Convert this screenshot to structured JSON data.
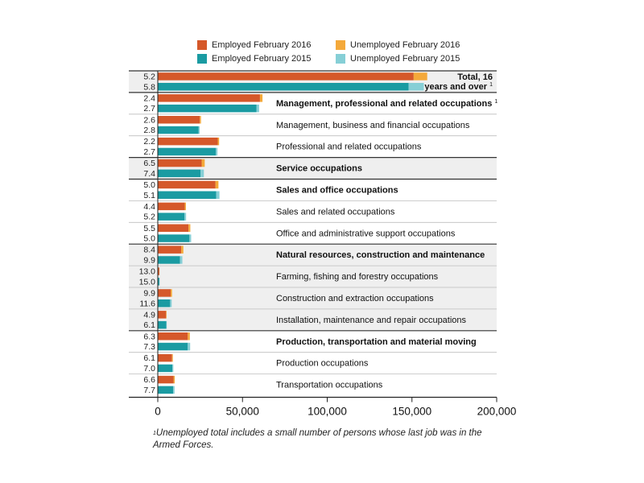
{
  "legend": {
    "employed_2016": "Employed February 2016",
    "unemployed_2016": "Unemployed February 2016",
    "employed_2015": "Employed February 2015",
    "unemployed_2015": "Unemployed February 2015"
  },
  "colors": {
    "employed_2016": "#d5582a",
    "unemployed_2016": "#f4a93a",
    "employed_2015": "#1a9ba2",
    "unemployed_2015": "#86cfd6",
    "band_shade": "#efefef"
  },
  "footnote": {
    "marker": "1",
    "text": "Unemployed total includes a small number of persons whose last job was in the Armed Forces."
  },
  "chart_data": {
    "type": "bar",
    "orientation": "horizontal",
    "stacked": true,
    "xlim": [
      0,
      200000
    ],
    "x_ticks": [
      0,
      50000,
      100000,
      150000,
      200000
    ],
    "x_tick_labels": [
      "0",
      "50,000",
      "100,000",
      "150,000",
      "200,000"
    ],
    "grid": false,
    "legend_position": "top",
    "series_names": [
      "Employed February 2016",
      "Unemployed February 2016",
      "Employed February 2015",
      "Unemployed February 2015"
    ],
    "categories": [
      {
        "label": "Total, 16 years and over",
        "footnote": "1",
        "bold": true,
        "shaded": true,
        "rate_2016": "5.2",
        "rate_2015": "5.8",
        "employed_2016": 151000,
        "unemployed_2016": 8000,
        "employed_2015": 148000,
        "unemployed_2015": 9000
      },
      {
        "label": "Management, professional and related occupations",
        "footnote": "1",
        "bold": true,
        "shaded": false,
        "rate_2016": "2.4",
        "rate_2015": "2.7",
        "employed_2016": 60300,
        "unemployed_2016": 1500,
        "employed_2015": 58200,
        "unemployed_2015": 1600
      },
      {
        "label": "Management, business and financial occupations",
        "bold": false,
        "shaded": false,
        "rate_2016": "2.6",
        "rate_2015": "2.8",
        "employed_2016": 24800,
        "unemployed_2016": 700,
        "employed_2015": 24000,
        "unemployed_2015": 700
      },
      {
        "label": "Professional and related occupations",
        "bold": false,
        "shaded": false,
        "rate_2016": "2.2",
        "rate_2015": "2.7",
        "employed_2016": 35400,
        "unemployed_2016": 800,
        "employed_2015": 34300,
        "unemployed_2015": 900
      },
      {
        "label": "Service occupations",
        "bold": true,
        "shaded": true,
        "rate_2016": "6.5",
        "rate_2015": "7.4",
        "employed_2016": 25900,
        "unemployed_2016": 1800,
        "employed_2015": 25200,
        "unemployed_2015": 2000
      },
      {
        "label": "Sales and office occupations",
        "bold": true,
        "shaded": false,
        "rate_2016": "5.0",
        "rate_2015": "5.1",
        "employed_2016": 34000,
        "unemployed_2016": 1800,
        "employed_2015": 34500,
        "unemployed_2015": 1900
      },
      {
        "label": "Sales and related occupations",
        "bold": false,
        "shaded": false,
        "rate_2016": "4.4",
        "rate_2015": "5.2",
        "employed_2016": 15900,
        "unemployed_2016": 700,
        "employed_2015": 15800,
        "unemployed_2015": 900
      },
      {
        "label": "Office and administrative support occupations",
        "bold": false,
        "shaded": false,
        "rate_2016": "5.5",
        "rate_2015": "5.0",
        "employed_2016": 18100,
        "unemployed_2016": 1100,
        "employed_2015": 18700,
        "unemployed_2015": 1000
      },
      {
        "label": "Natural resources, construction and maintenance",
        "bold": true,
        "shaded": true,
        "rate_2016": "8.4",
        "rate_2015": "9.9",
        "employed_2016": 13800,
        "unemployed_2016": 1300,
        "employed_2015": 13100,
        "unemployed_2015": 1400
      },
      {
        "label": "Farming, fishing and forestry occupations",
        "bold": false,
        "shaded": true,
        "rate_2016": "13.0",
        "rate_2015": "15.0",
        "employed_2016": 900,
        "unemployed_2016": 100,
        "employed_2015": 900,
        "unemployed_2015": 200
      },
      {
        "label": "Construction and extraction occupations",
        "bold": false,
        "shaded": true,
        "rate_2016": "9.9",
        "rate_2015": "11.6",
        "employed_2016": 7600,
        "unemployed_2016": 800,
        "employed_2015": 7300,
        "unemployed_2015": 900
      },
      {
        "label": "Installation, maintenance and repair occupations",
        "bold": false,
        "shaded": true,
        "rate_2016": "4.9",
        "rate_2015": "6.1",
        "employed_2016": 4900,
        "unemployed_2016": 300,
        "employed_2015": 5000,
        "unemployed_2015": 300
      },
      {
        "label": "Production, transportation and material moving",
        "bold": true,
        "shaded": false,
        "rate_2016": "6.3",
        "rate_2015": "7.3",
        "employed_2016": 17700,
        "unemployed_2016": 1200,
        "employed_2015": 17700,
        "unemployed_2015": 1400
      },
      {
        "label": "Production occupations",
        "bold": false,
        "shaded": false,
        "rate_2016": "6.1",
        "rate_2015": "7.0",
        "employed_2016": 8400,
        "unemployed_2016": 500,
        "employed_2015": 8600,
        "unemployed_2015": 600
      },
      {
        "label": "Transportation occupations",
        "bold": false,
        "shaded": false,
        "rate_2016": "6.6",
        "rate_2015": "7.7",
        "employed_2016": 9300,
        "unemployed_2016": 700,
        "employed_2015": 9100,
        "unemployed_2015": 800
      }
    ]
  }
}
